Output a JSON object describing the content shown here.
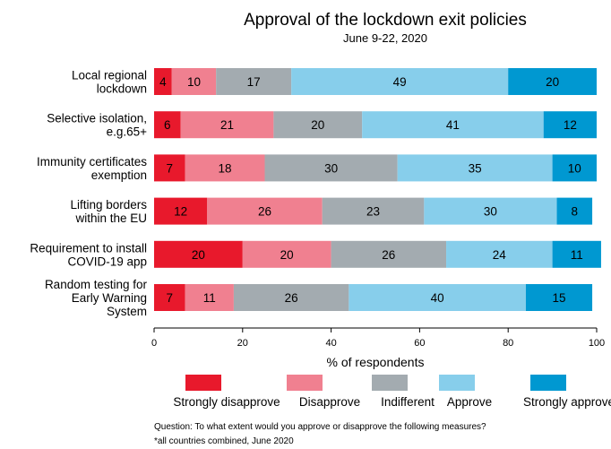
{
  "chart_data": {
    "type": "bar",
    "orientation": "horizontal",
    "stacked": true,
    "title": "Approval of the lockdown exit policies",
    "subtitle": "June 9-22, 2020",
    "xlabel": "% of respondents",
    "xlim": [
      0,
      100
    ],
    "xticks": [
      "0",
      "20",
      "40",
      "60",
      "80",
      "100"
    ],
    "grid": false,
    "legend_position": "bottom",
    "categories": [
      [
        "Local regional",
        "lockdown"
      ],
      [
        "Selective isolation,",
        "e.g.65+"
      ],
      [
        "Immunity certificates",
        "exemption"
      ],
      [
        "Lifting borders",
        "within the EU"
      ],
      [
        "Requirement to install",
        "COVID-19 app"
      ],
      [
        "Random testing for",
        "Early Warning",
        "System"
      ]
    ],
    "series": [
      {
        "name": "Strongly disapprove",
        "color": "#e8192c",
        "values": [
          4,
          6,
          7,
          12,
          20,
          7
        ]
      },
      {
        "name": "Disapprove",
        "color": "#f08090",
        "values": [
          10,
          21,
          18,
          26,
          20,
          11
        ]
      },
      {
        "name": "Indifferent",
        "color": "#a3abb0",
        "values": [
          17,
          20,
          30,
          23,
          26,
          26
        ]
      },
      {
        "name": "Approve",
        "color": "#87ceeb",
        "values": [
          49,
          41,
          35,
          30,
          24,
          40
        ]
      },
      {
        "name": "Strongly approve",
        "color": "#0098d1",
        "values": [
          20,
          12,
          10,
          8,
          11,
          15
        ]
      }
    ],
    "notes": [
      "Question: To what extent would you approve or disapprove the following measures?",
      "*all countries combined, June 2020"
    ]
  }
}
